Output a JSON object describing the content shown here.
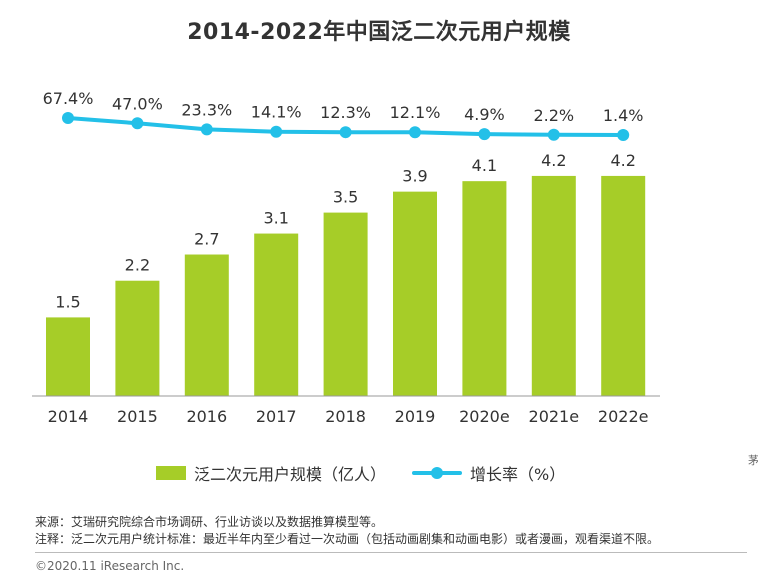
{
  "title": "2014-2022年中国泛二次元用户规模",
  "chart_data": {
    "type": "bar",
    "categories": [
      "2014",
      "2015",
      "2016",
      "2017",
      "2018",
      "2019",
      "2020e",
      "2021e",
      "2022e"
    ],
    "series": [
      {
        "name": "泛二次元用户规模（亿人）",
        "type": "bar",
        "values": [
          1.5,
          2.2,
          2.7,
          3.1,
          3.5,
          3.9,
          4.1,
          4.2,
          4.2
        ],
        "labels": [
          "1.5",
          "2.2",
          "2.7",
          "3.1",
          "3.5",
          "3.9",
          "4.1",
          "4.2",
          "4.2"
        ],
        "color": "#a6cd28"
      },
      {
        "name": "增长率（%）",
        "type": "line",
        "values": [
          67.4,
          47.0,
          23.3,
          14.1,
          12.3,
          12.1,
          4.9,
          2.2,
          1.4
        ],
        "labels": [
          "67.4%",
          "47.0%",
          "23.3%",
          "14.1%",
          "12.3%",
          "12.1%",
          "4.9%",
          "2.2%",
          "1.4%"
        ],
        "color": "#23c0e8"
      }
    ],
    "legend_position": "bottom",
    "grid": false
  },
  "legend": {
    "bar_label": "泛二次元用户规模（亿人）",
    "line_label": "增长率（%）"
  },
  "stray_mark": "茅",
  "notes": {
    "source": "来源：艾瑞研究院综合市场调研、行业访谈以及数据推算模型等。",
    "note": "注释：泛二次元用户统计标准：最近半年内至少看过一次动画（包括动画剧集和动画电影）或者漫画，观看渠道不限。"
  },
  "copyright": "©2020.11 iResearch Inc."
}
